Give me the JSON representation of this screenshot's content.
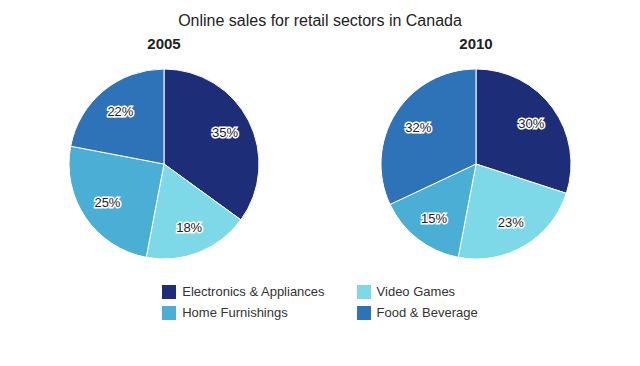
{
  "chart_data": {
    "type": "pie",
    "title": "Online sales for retail sectors in Canada",
    "legend": "bottom",
    "data_labels": true,
    "categories": [
      "Electronics & Appliances",
      "Video Games",
      "Home Furnishings",
      "Food & Beverage"
    ],
    "colors": [
      "#1e2d78",
      "#7dd9e8",
      "#4baed4",
      "#2e73b8"
    ],
    "series": [
      {
        "name": "2005",
        "values": [
          35,
          18,
          25,
          22
        ],
        "value_labels": [
          "35%",
          "18%",
          "25%",
          "22%"
        ]
      },
      {
        "name": "2010",
        "values": [
          30,
          23,
          15,
          32
        ],
        "value_labels": [
          "30%",
          "23%",
          "15%",
          "32%"
        ]
      }
    ]
  }
}
